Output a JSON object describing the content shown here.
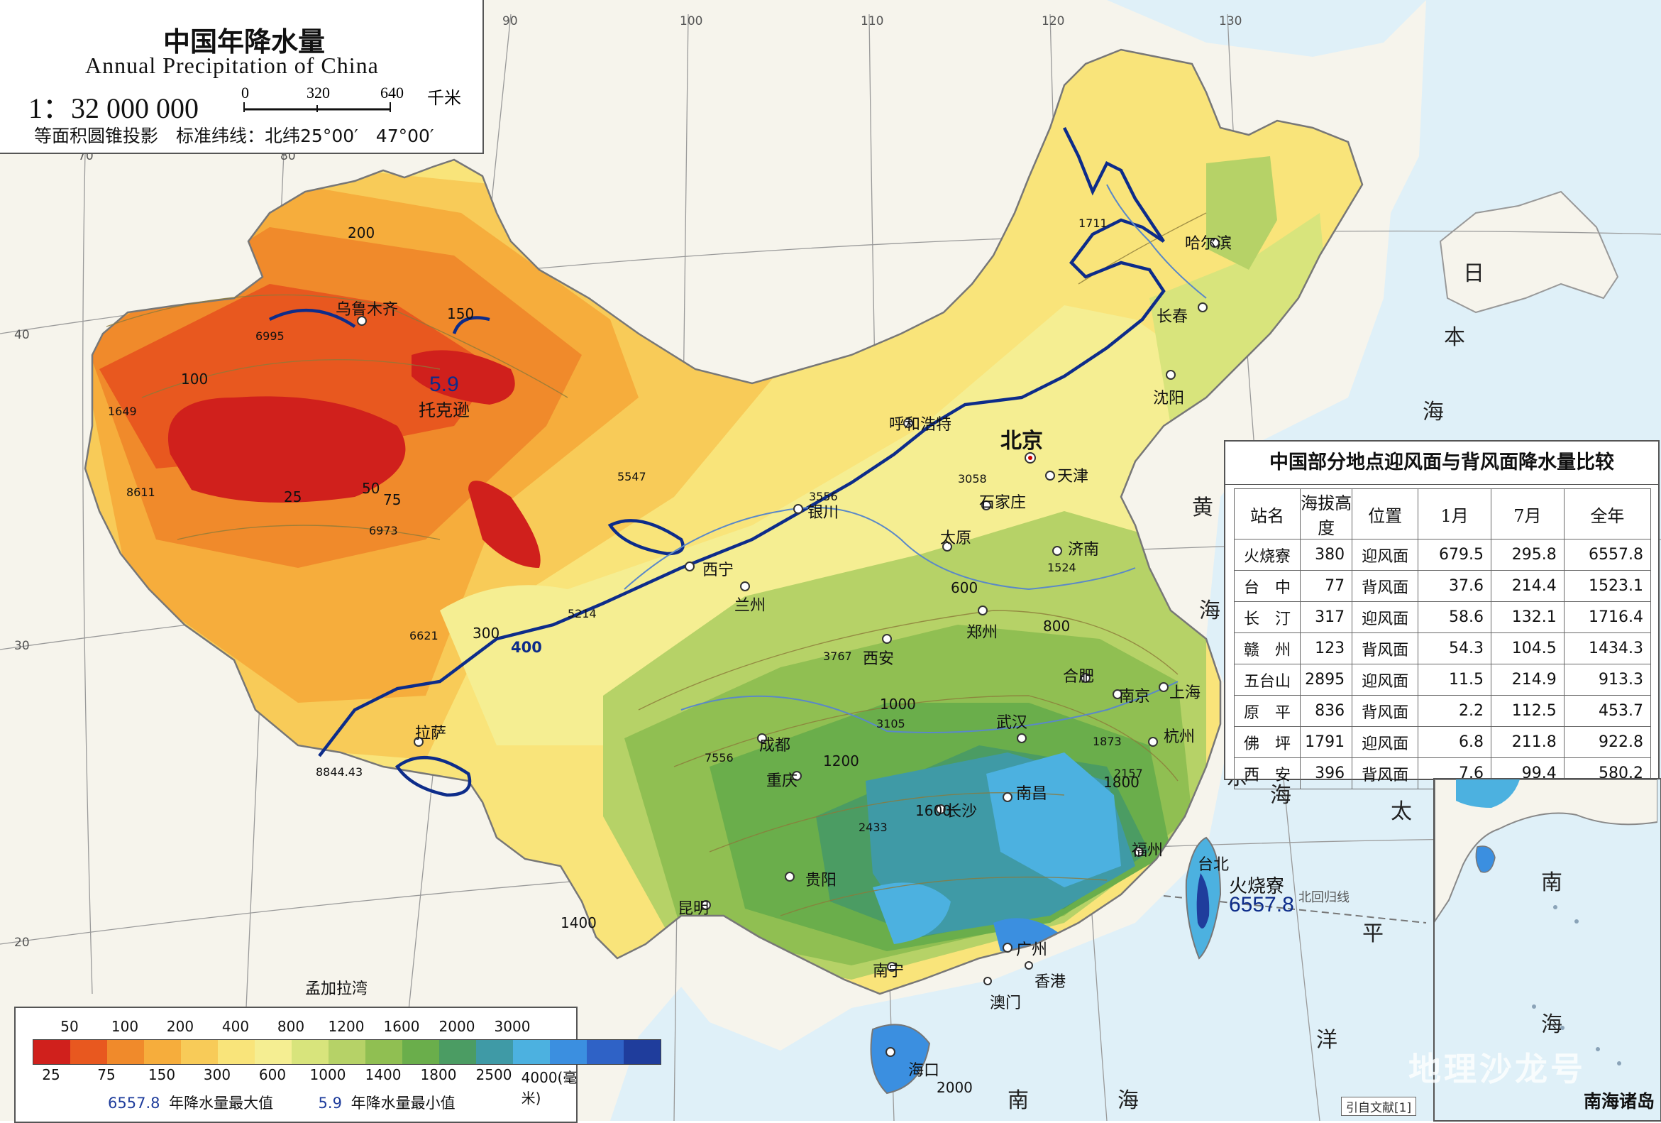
{
  "title": {
    "cn": "中国年降水量",
    "en": "Annual Precipitation of China",
    "scale": "1：32 000 000",
    "scalebar": {
      "ticks": [
        "0",
        "320",
        "640"
      ],
      "unit": "千米"
    },
    "projection": "等面积圆锥投影　标准纬线：北纬25°00′　47°00′"
  },
  "grid_labels": {
    "top": [
      "90",
      "100",
      "110",
      "120",
      "130"
    ],
    "top_inner": [
      "70",
      "80"
    ],
    "left": [
      "40",
      "30",
      "20"
    ]
  },
  "cities": {
    "beijing": "北京",
    "tianjin": "天津",
    "shijiazhuang": "石家庄",
    "taiyuan": "太原",
    "jinan": "济南",
    "zhengzhou": "郑州",
    "xian": "西安",
    "hefei": "合肥",
    "nanjing": "南京",
    "shanghai": "上海",
    "hangzhou": "杭州",
    "wuhan": "武汉",
    "changsha": "长沙",
    "nanchang": "南昌",
    "fuzhou": "福州",
    "guangzhou": "广州",
    "hongkong": "香港",
    "macau": "澳门",
    "nanning": "南宁",
    "haikou": "海口",
    "guiyang": "贵阳",
    "kunming": "昆明",
    "chengdu": "成都",
    "chongqing": "重庆",
    "lhasa": "拉萨",
    "xining": "西宁",
    "lanzhou": "兰州",
    "yinchuan": "银川",
    "hohhot": "呼和浩特",
    "urumqi": "乌鲁木齐",
    "toksun": "托克逊",
    "harbin": "哈尔滨",
    "changchun": "长春",
    "shenyang": "沈阳",
    "taipei": "台北",
    "huoshaoliao": "火烧寮"
  },
  "seas": {
    "japan_sea": [
      "日",
      "本",
      "海"
    ],
    "yellow_sea": [
      "黄",
      "海"
    ],
    "east_sea": [
      "东",
      "海"
    ],
    "pacific": [
      "太",
      "平",
      "洋"
    ],
    "south_sea": [
      "南",
      "海"
    ],
    "bay_of_bengal": "孟加拉湾",
    "tropic": "北回归线"
  },
  "extremes": {
    "max_value": "6557.8",
    "min_value": "5.9"
  },
  "isolines": [
    "25",
    "50",
    "75",
    "100",
    "150",
    "200",
    "300",
    "400",
    "600",
    "800",
    "1000",
    "1200",
    "1400",
    "1600",
    "1800",
    "2000"
  ],
  "spot_values": [
    "1711",
    "1649",
    "8611",
    "6995",
    "6973",
    "5547",
    "5214",
    "6621",
    "3767",
    "3105",
    "3556",
    "3058",
    "1524",
    "1873",
    "2157",
    "2433",
    "7556",
    "8844.43"
  ],
  "table": {
    "title": "中国部分地点迎风面与背风面降水量比较",
    "headers": [
      "站名",
      "海拔高度",
      "位置",
      "1月",
      "7月",
      "全年"
    ],
    "rows": [
      [
        "火烧寮",
        "380",
        "迎风面",
        "679.5",
        "295.8",
        "6557.8"
      ],
      [
        "台　中",
        "77",
        "背风面",
        "37.6",
        "214.4",
        "1523.1"
      ],
      [
        "长　汀",
        "317",
        "迎风面",
        "58.6",
        "132.1",
        "1716.4"
      ],
      [
        "赣　州",
        "123",
        "背风面",
        "54.3",
        "104.5",
        "1434.3"
      ],
      [
        "五台山",
        "2895",
        "迎风面",
        "11.5",
        "214.9",
        "913.3"
      ],
      [
        "原　平",
        "836",
        "背风面",
        "2.2",
        "112.5",
        "453.7"
      ],
      [
        "佛　坪",
        "1791",
        "迎风面",
        "6.8",
        "211.8",
        "922.8"
      ],
      [
        "西　安",
        "396",
        "背风面",
        "7.6",
        "99.4",
        "580.2"
      ]
    ]
  },
  "legend": {
    "top_labels": [
      "50",
      "100",
      "200",
      "400",
      "800",
      "1200",
      "1600",
      "2000",
      "3000"
    ],
    "bottom_labels": [
      "25",
      "75",
      "150",
      "300",
      "600",
      "1000",
      "1400",
      "1800",
      "2500",
      "4000(毫米)"
    ],
    "colors": [
      "#d0201c",
      "#e8581f",
      "#f08a2b",
      "#f6ad3c",
      "#f8cb58",
      "#f9e47a",
      "#f5ee92",
      "#d8e47c",
      "#b6d267",
      "#90bf52",
      "#6aae4b",
      "#4b9c63",
      "#3f9aa6",
      "#4cb1e0",
      "#3b8fe0",
      "#2f62c6",
      "#1f3d9c"
    ],
    "max_note": "年降水量最大值",
    "min_note": "年降水量最小值"
  },
  "inset": {
    "label": "南海诸岛"
  },
  "source_note": "引自文献[1]",
  "watermark": "地理沙龙号"
}
